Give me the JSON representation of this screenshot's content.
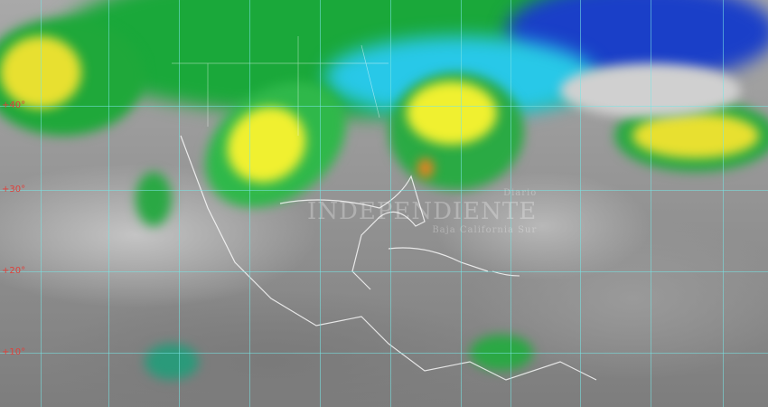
{
  "image": {
    "type": "satellite infrared composite",
    "region": "North America, Gulf of Mexico, Caribbean"
  },
  "latitude_labels": [
    "+40°",
    "+30°",
    "+20°",
    "+10°"
  ],
  "watermark": {
    "line1": "Diario",
    "line2": "INDEPENDIENTE",
    "line3": "Baja California Sur"
  },
  "colors": {
    "cold_top_green": "#1aa83a",
    "blue": "#1530c8",
    "cyan": "#28c8e8",
    "yellow": "#f0f030",
    "orange": "#f08020",
    "grid": "#78e6e6",
    "label": "#e0403a"
  }
}
